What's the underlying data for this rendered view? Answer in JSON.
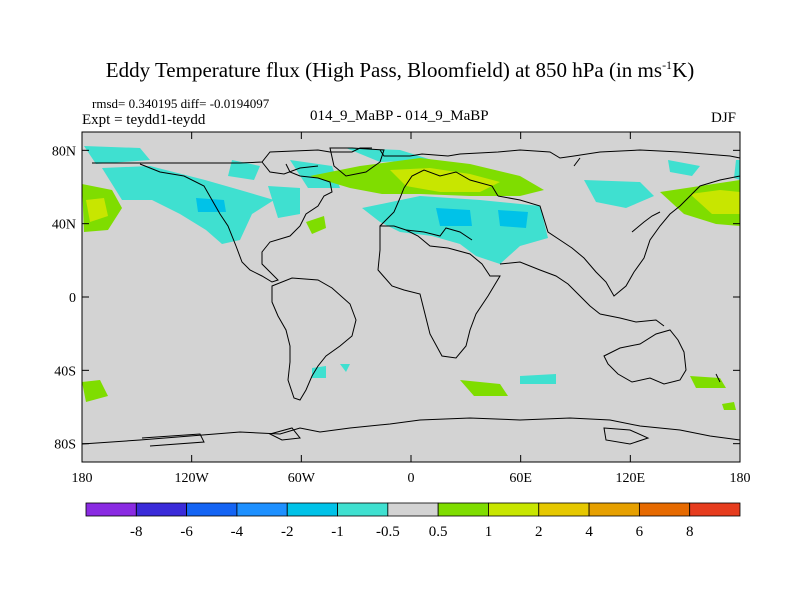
{
  "title": {
    "main": "Eddy Temperature flux (High Pass, Bloomfield) at 850 hPa (in ms",
    "sup": "-1",
    "tail": "K)"
  },
  "stats": "rmsd= 0.340195 diff= -0.0194097",
  "experiment": "Expt = teydd1-teydd",
  "center_label": "014_9_MaBP - 014_9_MaBP",
  "season": "DJF",
  "lat_labels": [
    {
      "text": "80N",
      "lat": 80
    },
    {
      "text": "40N",
      "lat": 40
    },
    {
      "text": "0",
      "lat": 0
    },
    {
      "text": "40S",
      "lat": -40
    },
    {
      "text": "80S",
      "lat": -80
    }
  ],
  "lon_labels": [
    {
      "text": "180",
      "lon": -180
    },
    {
      "text": "120W",
      "lon": -120
    },
    {
      "text": "60W",
      "lon": -60
    },
    {
      "text": "0",
      "lon": 0
    },
    {
      "text": "60E",
      "lon": 60
    },
    {
      "text": "120E",
      "lon": 120
    },
    {
      "text": "180",
      "lon": 180
    }
  ],
  "map_extent": {
    "lon": [
      -180,
      180
    ],
    "lat": [
      -90,
      90
    ]
  },
  "colorbar": {
    "colors": [
      "#8a2be2",
      "#3a2bd9",
      "#1464f4",
      "#1e90ff",
      "#00c2e8",
      "#3fe0d0",
      "#d3d3d3",
      "#7fdd00",
      "#c8e600",
      "#e6c800",
      "#e6a000",
      "#e66a00",
      "#e63c1e"
    ],
    "labels": [
      "-8",
      "-6",
      "-4",
      "-2",
      "-1",
      "-0.5",
      "0.5",
      "1",
      "2",
      "4",
      "6",
      "8"
    ]
  },
  "background_color": "#d3d3d3"
}
